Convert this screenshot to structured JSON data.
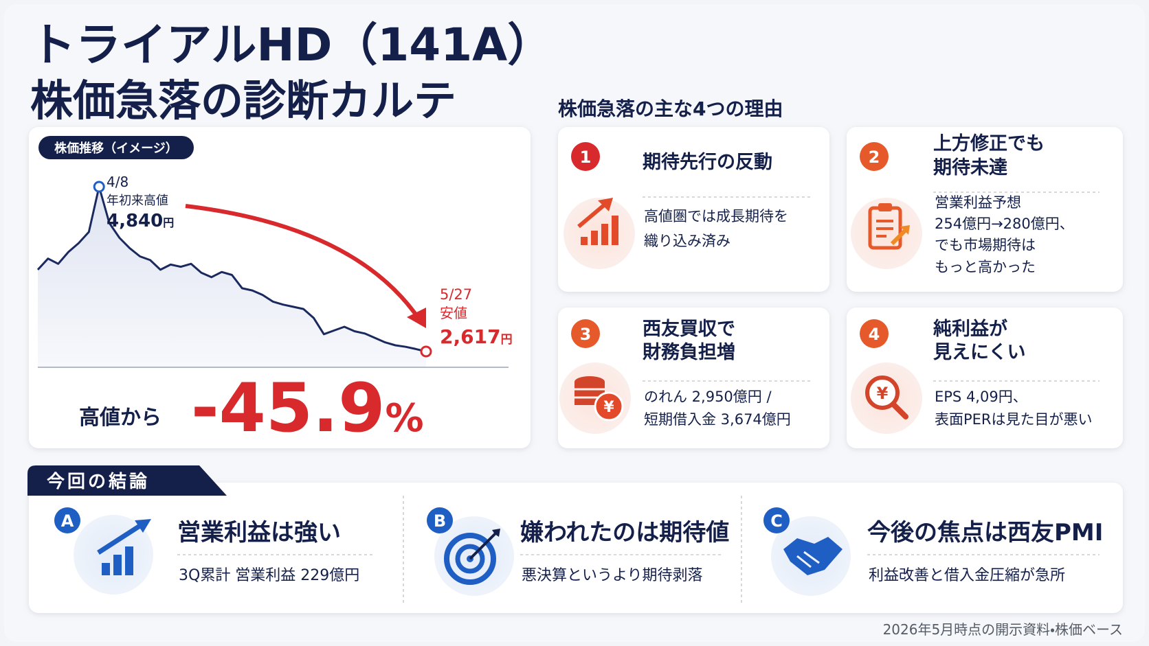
{
  "header": {
    "title_line1": "トライアルHD（141A）",
    "title_line2": "株価急落の診断カルテ"
  },
  "chart_data": {
    "type": "line",
    "label": "株価推移（イメージ）",
    "color": "#1b2a5e",
    "values": [
      3720,
      3870,
      3800,
      3960,
      4080,
      4230,
      4840,
      4350,
      4150,
      4010,
      3900,
      3850,
      3720,
      3790,
      3760,
      3800,
      3680,
      3620,
      3690,
      3650,
      3470,
      3440,
      3380,
      3290,
      3250,
      3220,
      3190,
      3070,
      2850,
      2900,
      2950,
      2890,
      2860,
      2800,
      2740,
      2700,
      2680,
      2650,
      2617
    ],
    "peak_annotation": {
      "date": "4/8",
      "label": "年初来高値",
      "price": "4,840",
      "unit": "円"
    },
    "low_annotation": {
      "date": "5/27",
      "label": "安値",
      "price": "2,617",
      "unit": "円"
    }
  },
  "change": {
    "label": "高値から",
    "value": "-45.9",
    "unit": "%"
  },
  "reasons": {
    "title": "株価急落の主な4つの理由",
    "items": [
      {
        "number": "1",
        "title": [
          "期待先行の反動"
        ],
        "lines": [
          "高値圏では成長期待を",
          "織り込み済み"
        ]
      },
      {
        "number": "2",
        "title": [
          "上方修正でも",
          "期待未達"
        ],
        "lines": [
          "営業利益予想",
          "254億円→280億円、",
          "でも市場期待は",
          "もっと高かった"
        ]
      },
      {
        "number": "3",
        "title": [
          "西友買収で",
          "財務負担増"
        ],
        "lines": [
          "のれん 2,950億円 /",
          "短期借入金 3,674億円"
        ]
      },
      {
        "number": "4",
        "title": [
          "純利益が",
          "見えにくい"
        ],
        "lines": [
          "EPS 4,09円、",
          "表面PERは見た目が悪い"
        ]
      }
    ]
  },
  "conclusion": {
    "tab": "今回の結論",
    "items": [
      {
        "letter": "A",
        "title": "営業利益は強い",
        "text": "3Q累計 営業利益 229億円"
      },
      {
        "letter": "B",
        "title": "嫌われたのは期待値",
        "text": "悪決算というより期待剥落"
      },
      {
        "letter": "C",
        "title": "今後の焦点は西友PMI",
        "text": "利益改善と借入金圧縮が急所"
      }
    ]
  },
  "footnote": "2026年5月時点の開示資料・株価ベース"
}
